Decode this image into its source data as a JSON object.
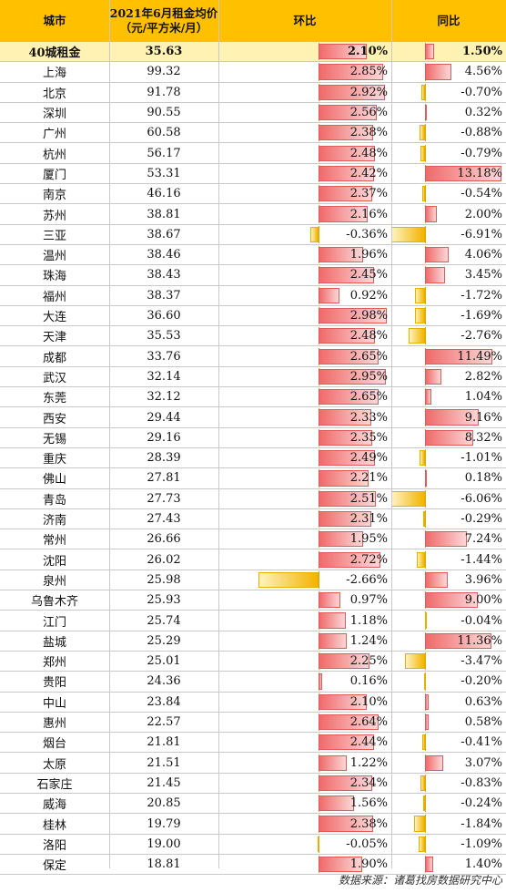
{
  "header": {
    "city": "城市",
    "price": "2021年6月租金均价\n（元/平方米/月）",
    "mom": "环比",
    "yoy": "同比"
  },
  "rows": [
    {
      "city": "40城租金",
      "price": "35.63",
      "mom": 2.1,
      "mom_text": "2.10%",
      "yoy": 1.5,
      "yoy_text": "1.50%",
      "highlight": true
    },
    {
      "city": "上海",
      "price": "99.32",
      "mom": 2.85,
      "mom_text": "2.85%",
      "yoy": 4.56,
      "yoy_text": "4.56%"
    },
    {
      "city": "北京",
      "price": "91.78",
      "mom": 2.92,
      "mom_text": "2.92%",
      "yoy": -0.7,
      "yoy_text": "-0.70%"
    },
    {
      "city": "深圳",
      "price": "90.55",
      "mom": 2.56,
      "mom_text": "2.56%",
      "yoy": 0.32,
      "yoy_text": "0.32%"
    },
    {
      "city": "广州",
      "price": "60.58",
      "mom": 2.38,
      "mom_text": "2.38%",
      "yoy": -0.88,
      "yoy_text": "-0.88%"
    },
    {
      "city": "杭州",
      "price": "56.17",
      "mom": 2.48,
      "mom_text": "2.48%",
      "yoy": -0.79,
      "yoy_text": "-0.79%"
    },
    {
      "city": "厦门",
      "price": "53.31",
      "mom": 2.42,
      "mom_text": "2.42%",
      "yoy": 13.18,
      "yoy_text": "13.18%"
    },
    {
      "city": "南京",
      "price": "46.16",
      "mom": 2.37,
      "mom_text": "2.37%",
      "yoy": -0.54,
      "yoy_text": "-0.54%"
    },
    {
      "city": "苏州",
      "price": "38.81",
      "mom": 2.16,
      "mom_text": "2.16%",
      "yoy": 2.0,
      "yoy_text": "2.00%"
    },
    {
      "city": "三亚",
      "price": "38.67",
      "mom": -0.36,
      "mom_text": "-0.36%",
      "yoy": -6.91,
      "yoy_text": "-6.91%"
    },
    {
      "city": "温州",
      "price": "38.46",
      "mom": 1.96,
      "mom_text": "1.96%",
      "yoy": 4.06,
      "yoy_text": "4.06%"
    },
    {
      "city": "珠海",
      "price": "38.43",
      "mom": 2.45,
      "mom_text": "2.45%",
      "yoy": 3.45,
      "yoy_text": "3.45%"
    },
    {
      "city": "福州",
      "price": "38.37",
      "mom": 0.92,
      "mom_text": "0.92%",
      "yoy": -1.72,
      "yoy_text": "-1.72%"
    },
    {
      "city": "大连",
      "price": "36.60",
      "mom": 2.98,
      "mom_text": "2.98%",
      "yoy": -1.69,
      "yoy_text": "-1.69%"
    },
    {
      "city": "天津",
      "price": "35.53",
      "mom": 2.48,
      "mom_text": "2.48%",
      "yoy": -2.76,
      "yoy_text": "-2.76%"
    },
    {
      "city": "成都",
      "price": "33.76",
      "mom": 2.65,
      "mom_text": "2.65%",
      "yoy": 11.49,
      "yoy_text": "11.49%"
    },
    {
      "city": "武汉",
      "price": "32.14",
      "mom": 2.95,
      "mom_text": "2.95%",
      "yoy": 2.82,
      "yoy_text": "2.82%"
    },
    {
      "city": "东莞",
      "price": "32.12",
      "mom": 2.65,
      "mom_text": "2.65%",
      "yoy": 1.04,
      "yoy_text": "1.04%"
    },
    {
      "city": "西安",
      "price": "29.44",
      "mom": 2.33,
      "mom_text": "2.33%",
      "yoy": 9.16,
      "yoy_text": "9.16%"
    },
    {
      "city": "无锡",
      "price": "29.16",
      "mom": 2.35,
      "mom_text": "2.35%",
      "yoy": 8.32,
      "yoy_text": "8.32%"
    },
    {
      "city": "重庆",
      "price": "28.39",
      "mom": 2.49,
      "mom_text": "2.49%",
      "yoy": -1.01,
      "yoy_text": "-1.01%"
    },
    {
      "city": "佛山",
      "price": "27.81",
      "mom": 2.21,
      "mom_text": "2.21%",
      "yoy": 0.18,
      "yoy_text": "0.18%"
    },
    {
      "city": "青岛",
      "price": "27.73",
      "mom": 2.51,
      "mom_text": "2.51%",
      "yoy": -6.06,
      "yoy_text": "-6.06%"
    },
    {
      "city": "济南",
      "price": "27.43",
      "mom": 2.31,
      "mom_text": "2.31%",
      "yoy": -0.29,
      "yoy_text": "-0.29%"
    },
    {
      "city": "常州",
      "price": "26.66",
      "mom": 1.95,
      "mom_text": "1.95%",
      "yoy": 7.24,
      "yoy_text": "7.24%"
    },
    {
      "city": "沈阳",
      "price": "26.02",
      "mom": 2.72,
      "mom_text": "2.72%",
      "yoy": -1.44,
      "yoy_text": "-1.44%"
    },
    {
      "city": "泉州",
      "price": "25.98",
      "mom": -2.66,
      "mom_text": "-2.66%",
      "yoy": 3.96,
      "yoy_text": "3.96%"
    },
    {
      "city": "乌鲁木齐",
      "price": "25.93",
      "mom": 0.97,
      "mom_text": "0.97%",
      "yoy": 9.0,
      "yoy_text": "9.00%"
    },
    {
      "city": "江门",
      "price": "25.74",
      "mom": 1.18,
      "mom_text": "1.18%",
      "yoy": -0.04,
      "yoy_text": "-0.04%"
    },
    {
      "city": "盐城",
      "price": "25.29",
      "mom": 1.24,
      "mom_text": "1.24%",
      "yoy": 11.36,
      "yoy_text": "11.36%"
    },
    {
      "city": "郑州",
      "price": "25.01",
      "mom": 2.25,
      "mom_text": "2.25%",
      "yoy": -3.47,
      "yoy_text": "-3.47%"
    },
    {
      "city": "贵阳",
      "price": "24.36",
      "mom": 0.16,
      "mom_text": "0.16%",
      "yoy": -0.2,
      "yoy_text": "-0.20%"
    },
    {
      "city": "中山",
      "price": "23.84",
      "mom": 2.1,
      "mom_text": "2.10%",
      "yoy": 0.63,
      "yoy_text": "0.63%"
    },
    {
      "city": "惠州",
      "price": "22.57",
      "mom": 2.64,
      "mom_text": "2.64%",
      "yoy": 0.58,
      "yoy_text": "0.58%"
    },
    {
      "city": "烟台",
      "price": "21.81",
      "mom": 2.44,
      "mom_text": "2.44%",
      "yoy": -0.41,
      "yoy_text": "-0.41%"
    },
    {
      "city": "太原",
      "price": "21.51",
      "mom": 1.22,
      "mom_text": "1.22%",
      "yoy": 3.07,
      "yoy_text": "3.07%"
    },
    {
      "city": "石家庄",
      "price": "21.45",
      "mom": 2.34,
      "mom_text": "2.34%",
      "yoy": -0.83,
      "yoy_text": "-0.83%"
    },
    {
      "city": "威海",
      "price": "20.85",
      "mom": 1.56,
      "mom_text": "1.56%",
      "yoy": -0.24,
      "yoy_text": "-0.24%"
    },
    {
      "city": "桂林",
      "price": "19.79",
      "mom": 2.38,
      "mom_text": "2.38%",
      "yoy": -1.84,
      "yoy_text": "-1.84%"
    },
    {
      "city": "洛阳",
      "price": "19.00",
      "mom": -0.05,
      "mom_text": "-0.05%",
      "yoy": -1.09,
      "yoy_text": "-1.09%"
    },
    {
      "city": "保定",
      "price": "18.81",
      "mom": 1.9,
      "mom_text": "1.90%",
      "yoy": 1.4,
      "yoy_text": "1.40%"
    }
  ],
  "colors": {
    "header_bg": "#ffc000",
    "highlight_row": "#fff2b3",
    "positive_bar": "#f06a6a",
    "negative_bar": "#f2b400"
  },
  "source": "数据来源：诸葛找房数据研究中心"
}
